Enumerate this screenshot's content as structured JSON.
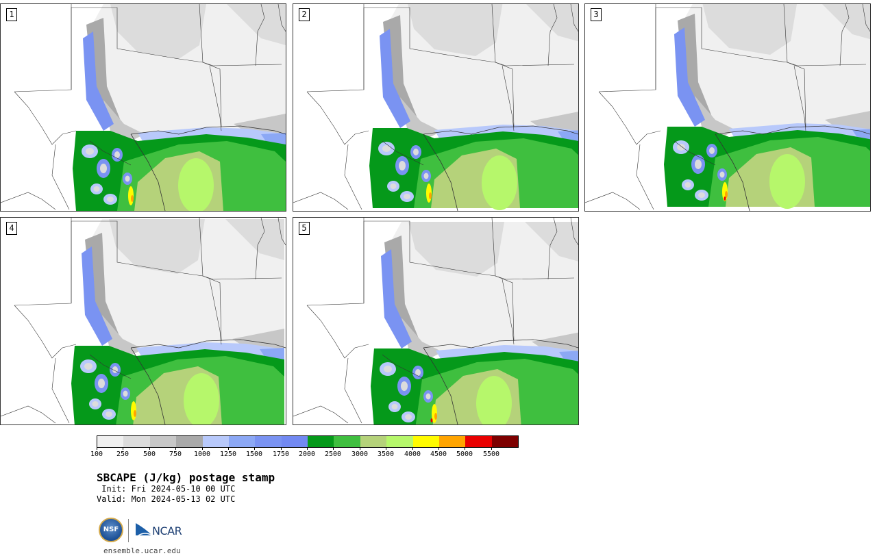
{
  "title": "SBCAPE (J/kg) postage stamp",
  "init": " Init: Fri 2024-05-10 00 UTC",
  "valid": "Valid: Mon 2024-05-13 02 UTC",
  "site": "ensemble.ucar.edu",
  "logos": {
    "nsf_text": "NSF",
    "ncar_text": "NCAR"
  },
  "panels": [
    {
      "label": "1",
      "variant": 0
    },
    {
      "label": "2",
      "variant": 1
    },
    {
      "label": "3",
      "variant": 2
    },
    {
      "label": "4",
      "variant": 3
    },
    {
      "label": "5",
      "variant": 4
    }
  ],
  "colorbar": {
    "colors": [
      "#f0f0f0",
      "#dcdcdc",
      "#c7c7c7",
      "#a9a9a9",
      "#b8c9fb",
      "#8ca8f5",
      "#7a93f2",
      "#7289f2",
      "#05991a",
      "#3fbf3f",
      "#b5d27a",
      "#b6f76b",
      "#fffb00",
      "#ffa400",
      "#e80000",
      "#7d0000"
    ],
    "tick_labels": [
      "100",
      "250",
      "500",
      "750",
      "1000",
      "1250",
      "1500",
      "1750",
      "2000",
      "2500",
      "3000",
      "3500",
      "4000",
      "4500",
      "5000",
      "5500"
    ]
  }
}
